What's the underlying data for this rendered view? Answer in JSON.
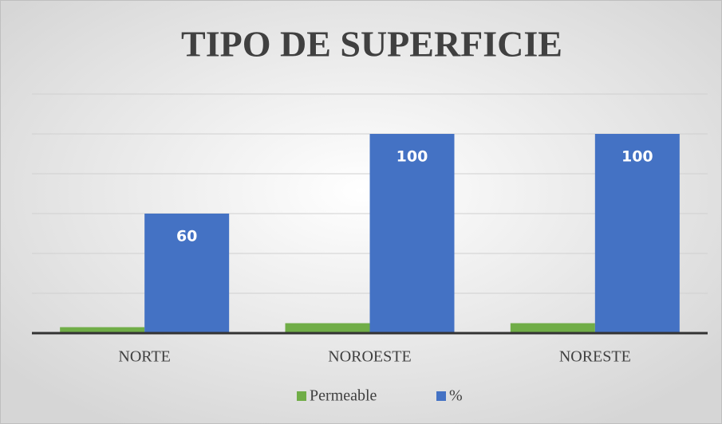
{
  "chart_data": {
    "type": "bar",
    "title": "TIPO DE SUPERFICIE",
    "categories": [
      "NORTE",
      "NOROESTE",
      "NORESTE"
    ],
    "series": [
      {
        "name": "Permeable",
        "color": "#70ad47",
        "values": [
          3,
          5,
          5
        ],
        "data_labels": false
      },
      {
        "name": "%",
        "color": "#4472c4",
        "values": [
          60,
          100,
          100
        ],
        "data_labels": true
      }
    ],
    "ylim": [
      0,
      120
    ],
    "yticks": [
      0,
      20,
      40,
      60,
      80,
      100,
      120
    ],
    "grid": true,
    "legend": "bottom"
  }
}
